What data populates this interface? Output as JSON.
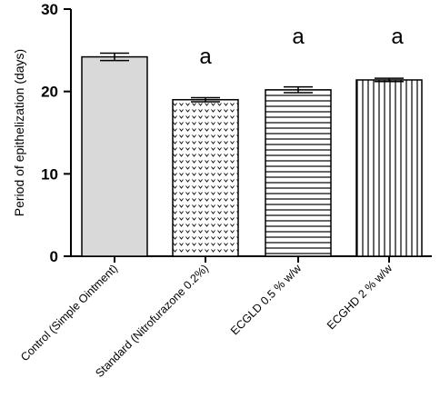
{
  "chart_data": {
    "type": "bar",
    "title": "",
    "xlabel": "",
    "ylabel": "Period of epithelization (days)",
    "ylim": [
      0,
      30
    ],
    "yticks": [
      0,
      10,
      20,
      30
    ],
    "grid": false,
    "legend": "none",
    "categories": [
      "Control (Simple Ointment)",
      "Standard (Nitrofurazone 0.2%)",
      "ECGLD 0.5 % w/w",
      "ECGHD 2 % w/w"
    ],
    "values": [
      24.2,
      19.0,
      20.2,
      21.4
    ],
    "errors": [
      0.45,
      0.25,
      0.35,
      0.2
    ],
    "annotations": [
      "",
      "a",
      "a",
      "a"
    ],
    "fills": [
      "solid-gray",
      "dots",
      "horizontal-lines",
      "vertical-lines"
    ],
    "colors": {
      "bar_fill": "#d9d9d9",
      "stroke": "#000000",
      "background": "#ffffff"
    }
  }
}
